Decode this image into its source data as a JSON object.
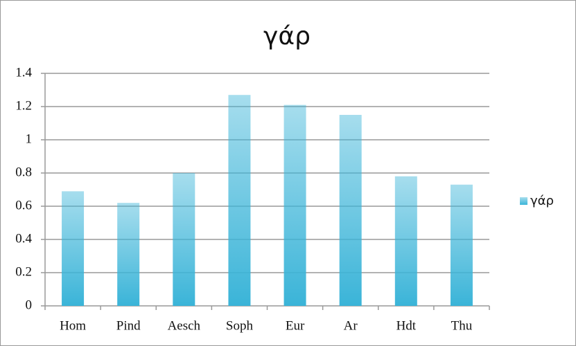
{
  "chart_data": {
    "type": "bar",
    "title": "γάρ",
    "categories": [
      "Hom",
      "Pind",
      "Aesch",
      "Soph",
      "Eur",
      "Ar",
      "Hdt",
      "Thu"
    ],
    "series": [
      {
        "name": "γάρ",
        "color": "#3ab4d8",
        "values": [
          0.69,
          0.62,
          0.8,
          1.27,
          1.21,
          1.15,
          0.78,
          0.73
        ]
      }
    ],
    "ylim": [
      0,
      1.4
    ],
    "yticks": [
      0,
      0.2,
      0.4,
      0.6,
      0.8,
      1,
      1.2,
      1.4
    ],
    "grid": true,
    "legend": "right"
  }
}
